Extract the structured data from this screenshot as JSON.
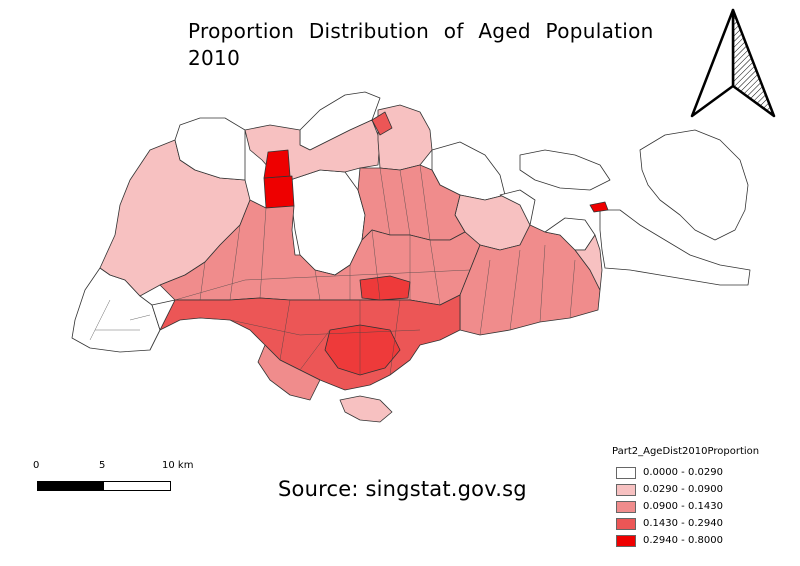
{
  "title": {
    "line1": "Proportion Distribution of Aged Population",
    "line2": "2010"
  },
  "source_text": "Source: singstat.gov.sg",
  "scale_bar": {
    "ticks": [
      "0",
      "5",
      "10 km"
    ]
  },
  "legend": {
    "title": "Part2_AgeDist2010Proportion",
    "classes": [
      {
        "label": "0.0000 - 0.0290",
        "color": "#ffffff"
      },
      {
        "label": "0.0290 - 0.0900",
        "color": "#f7c1c1"
      },
      {
        "label": "0.0900 - 0.1430",
        "color": "#f08c8c"
      },
      {
        "label": "0.1430 - 0.2940",
        "color": "#ec5656"
      },
      {
        "label": "0.2940 - 0.8000",
        "color": "#ee0000"
      }
    ]
  },
  "map": {
    "outline_color": "#333333",
    "north_arrow": "north-arrow-icon"
  }
}
